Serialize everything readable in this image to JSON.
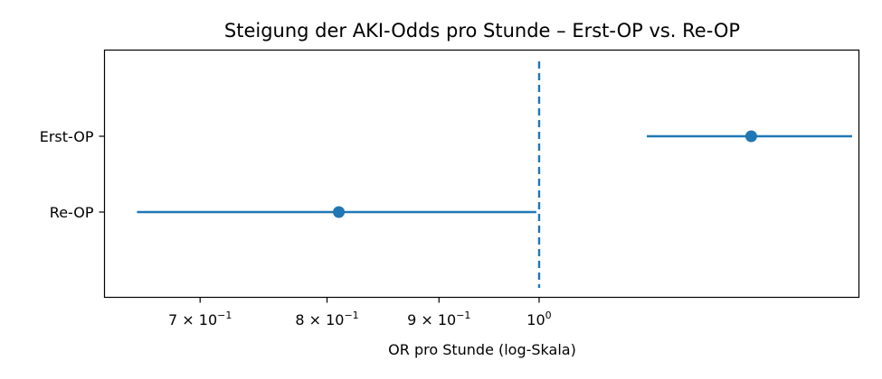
{
  "chart_data": {
    "type": "forest",
    "title": "Steigung der AKI-Odds pro Stunde – Erst-OP vs. Re-OP",
    "xlabel": "OR pro Stunde (log-Skala)",
    "ylabel": "",
    "x_scale": "log",
    "xlim": [
      0.633,
      1.4
    ],
    "x_ticks": [
      {
        "value": 0.7,
        "mantissa": "7",
        "exponent": "−1"
      },
      {
        "value": 0.8,
        "mantissa": "8",
        "exponent": "−1"
      },
      {
        "value": 0.9,
        "mantissa": "9",
        "exponent": "−1"
      },
      {
        "value": 1.0,
        "mantissa": "",
        "exponent": "0"
      }
    ],
    "categories": [
      "Erst-OP",
      "Re-OP"
    ],
    "estimates": [
      {
        "label": "Erst-OP",
        "or": 1.25,
        "ci_low": 1.12,
        "ci_high": 1.39
      },
      {
        "label": "Re-OP",
        "or": 0.81,
        "ci_low": 0.655,
        "ci_high": 0.997
      }
    ],
    "reference_line": {
      "value": 1.0,
      "style": "dashed"
    },
    "color": "#1f77b4",
    "grid": false,
    "legend": "none"
  }
}
